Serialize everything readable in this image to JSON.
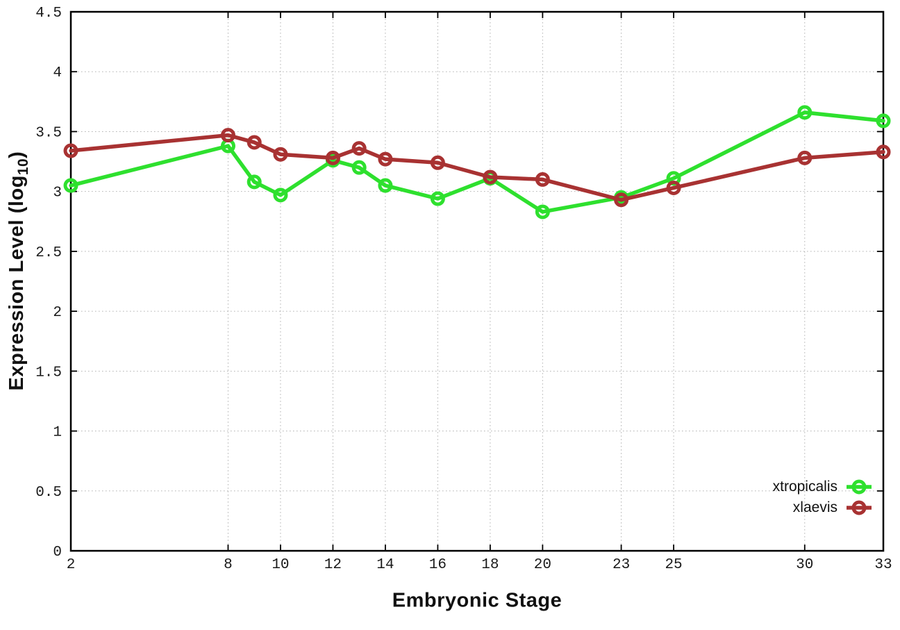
{
  "figure": {
    "xlabel": "Embryonic Stage",
    "ylabel_pre": "Expression Level (log",
    "ylabel_sub": "10",
    "ylabel_post": ")"
  },
  "legend": {
    "entries": [
      {
        "label": "xtropicalis",
        "color": "#2ee02e"
      },
      {
        "label": "xlaevis",
        "color": "#a83232"
      }
    ]
  },
  "chart_data": {
    "type": "line",
    "title": "",
    "xlabel": "Embryonic Stage",
    "ylabel": "Expression Level (log10)",
    "x": [
      2,
      8,
      9,
      10,
      12,
      13,
      14,
      16,
      18,
      20,
      23,
      25,
      30,
      33
    ],
    "series": [
      {
        "name": "xtropicalis",
        "color": "#2ee02e",
        "marker": "open-circle",
        "values": [
          3.05,
          3.38,
          3.08,
          2.97,
          3.26,
          3.2,
          3.05,
          2.94,
          3.11,
          2.83,
          2.95,
          3.11,
          3.66,
          3.59
        ]
      },
      {
        "name": "xlaevis",
        "color": "#a83232",
        "marker": "open-circle",
        "values": [
          3.34,
          3.47,
          3.41,
          3.31,
          3.28,
          3.36,
          3.27,
          3.24,
          3.12,
          3.1,
          2.93,
          3.03,
          3.28,
          3.33
        ]
      }
    ],
    "xlim": [
      2,
      33
    ],
    "ylim": [
      0,
      4.5
    ],
    "xticks": [
      2,
      8,
      10,
      12,
      14,
      16,
      18,
      20,
      23,
      25,
      30,
      33
    ],
    "yticks": [
      0,
      0.5,
      1,
      1.5,
      2,
      2.5,
      3,
      3.5,
      4,
      4.5
    ],
    "grid": true,
    "legend_position": "bottom-right-inside",
    "background": "#ffffff",
    "grid_color": "#b0b0b0",
    "axis_color": "#000000"
  }
}
